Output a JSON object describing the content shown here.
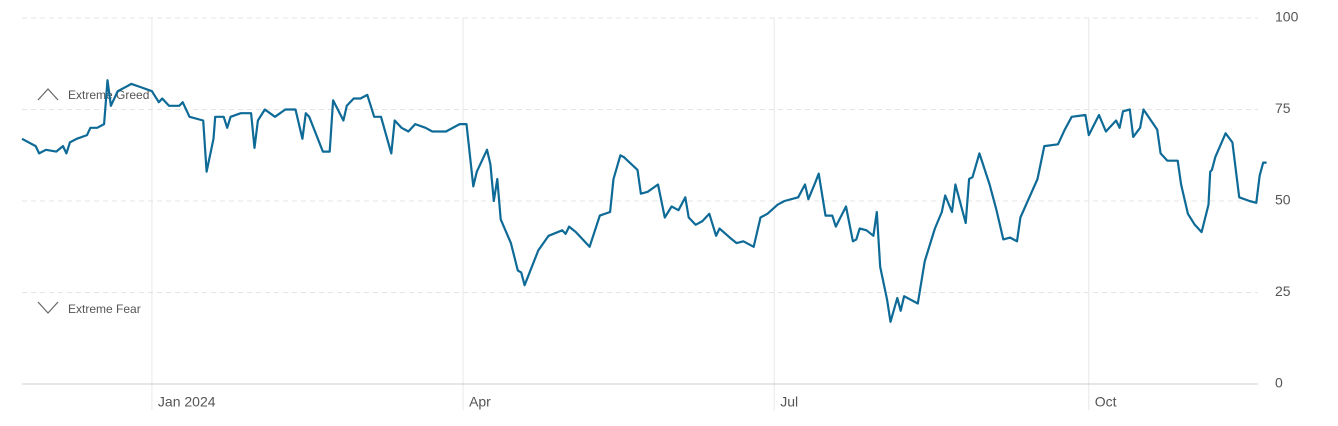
{
  "chart_data": {
    "type": "line",
    "annotations": [
      "Extreme Greed",
      "Extreme Fear"
    ],
    "xlim": [
      -38,
      327
    ],
    "xticks": [
      {
        "value": 0,
        "label": "Jan 2024"
      },
      {
        "value": 91,
        "label": "Apr"
      },
      {
        "value": 182,
        "label": "Jul"
      },
      {
        "value": 274,
        "label": "Oct"
      }
    ],
    "ylim": [
      0,
      100
    ],
    "yticks": [
      0,
      25,
      50,
      75,
      100
    ],
    "grid": true,
    "series": [
      {
        "color": "#0e6a96",
        "x": [
          -38,
          -34,
          -33,
          -31,
          -28,
          -26,
          -25,
          -24,
          -22,
          -19,
          -18,
          -16,
          -14,
          -13,
          -12,
          -10,
          -6,
          -3,
          0,
          2,
          3,
          5,
          8,
          9,
          11,
          15,
          16,
          18,
          18.5,
          21,
          22,
          23,
          26,
          29,
          30,
          31,
          33,
          36,
          39,
          42,
          44,
          45,
          46,
          50,
          52,
          53,
          56,
          57,
          59,
          61,
          63,
          65,
          67,
          70,
          71,
          73,
          75,
          77,
          80,
          82,
          84,
          86,
          90,
          92,
          94,
          95,
          98,
          99,
          100,
          101,
          102,
          105,
          107,
          108,
          109,
          113,
          116,
          120,
          121,
          122,
          124,
          128,
          131,
          134,
          135,
          137,
          138,
          142,
          143,
          145,
          148,
          150,
          152,
          154,
          156,
          157,
          159,
          161,
          163,
          165,
          166,
          169,
          171,
          173,
          176,
          178,
          180,
          183,
          185,
          189,
          191,
          192,
          194,
          195,
          197,
          199,
          200,
          203,
          205,
          206,
          207,
          209,
          211,
          212,
          213,
          215,
          216,
          218,
          219,
          220,
          224,
          226,
          229,
          231,
          232,
          234,
          235,
          238,
          239,
          240,
          242,
          245,
          247,
          249,
          251,
          253,
          254,
          259,
          261,
          265,
          267,
          269,
          273,
          274,
          277,
          279,
          282,
          283,
          284,
          286,
          287,
          289,
          290,
          294,
          295,
          297,
          300,
          301,
          303,
          305,
          307,
          309,
          309.5,
          310,
          311,
          314,
          316,
          318,
          321,
          323,
          324,
          325,
          326
        ],
        "values": [
          67,
          65,
          63,
          64,
          63.5,
          65,
          63,
          66,
          67,
          68,
          70,
          70,
          71,
          83,
          76,
          80,
          82,
          81,
          80,
          77,
          78,
          76,
          76,
          77,
          73,
          72,
          58,
          67,
          73,
          73,
          70,
          73,
          74,
          74,
          64.5,
          72,
          75,
          73,
          75,
          75,
          67,
          74,
          73,
          63.5,
          63.5,
          77.5,
          72,
          76,
          78,
          78,
          79,
          73,
          73,
          63,
          72,
          70,
          69,
          71,
          70,
          69,
          69,
          69,
          71,
          71,
          54,
          58,
          64,
          60,
          50,
          56,
          45,
          38.5,
          31,
          30.5,
          27,
          36.5,
          40.5,
          42,
          41,
          43,
          41.5,
          37.5,
          46,
          47,
          56,
          62.5,
          62,
          58.5,
          52,
          52.5,
          54.5,
          45.5,
          48.5,
          47.5,
          51,
          45.5,
          43.5,
          44.5,
          46.5,
          40.5,
          42.5,
          40,
          38.5,
          39,
          37.5,
          45.5,
          46.5,
          49,
          50,
          51,
          54.5,
          50.5,
          55,
          57.5,
          46,
          46,
          43,
          48.5,
          39,
          39.5,
          42.5,
          42,
          40.5,
          47,
          32,
          23,
          17,
          23.5,
          20,
          24,
          22,
          33.5,
          42.5,
          47,
          51.5,
          47,
          54.5,
          44,
          56,
          56.5,
          63,
          54.5,
          47.5,
          39.5,
          40,
          39,
          45.5,
          56,
          65,
          65.5,
          69.5,
          73,
          73.5,
          68,
          73.5,
          69,
          72,
          70,
          74.5,
          75,
          67.5,
          70,
          75,
          69.5,
          63,
          61,
          61,
          54.5,
          46.5,
          43.5,
          41.5,
          49,
          58,
          58.5,
          62,
          68.5,
          66,
          51,
          50,
          49.5,
          57,
          60.5,
          60.5
        ]
      }
    ]
  }
}
